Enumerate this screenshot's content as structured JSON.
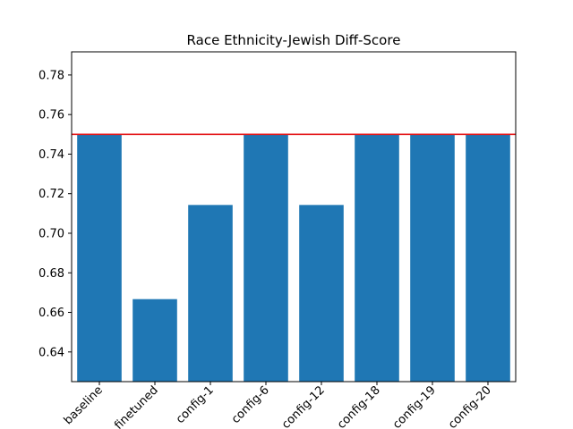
{
  "chart_data": {
    "type": "bar",
    "title": "Race Ethnicity-Jewish Diff-Score",
    "xlabel": "",
    "ylabel": "",
    "categories": [
      "baseline",
      "finetuned",
      "config-1",
      "config-6",
      "config-12",
      "config-18",
      "config-19",
      "config-20"
    ],
    "values": [
      0.75,
      0.6667,
      0.7143,
      0.75,
      0.7143,
      0.75,
      0.75,
      0.75
    ],
    "ylim": [
      0.625,
      0.7917
    ],
    "yticks": [
      0.64,
      0.66,
      0.68,
      0.7,
      0.72,
      0.74,
      0.76,
      0.78
    ],
    "ytick_labels": [
      "0.64",
      "0.66",
      "0.68",
      "0.70",
      "0.72",
      "0.74",
      "0.76",
      "0.78"
    ],
    "reference_line": {
      "value": 0.75,
      "color": "#e41a1c"
    },
    "bar_color": "#1f77b4",
    "grid": false,
    "legend": "none"
  }
}
